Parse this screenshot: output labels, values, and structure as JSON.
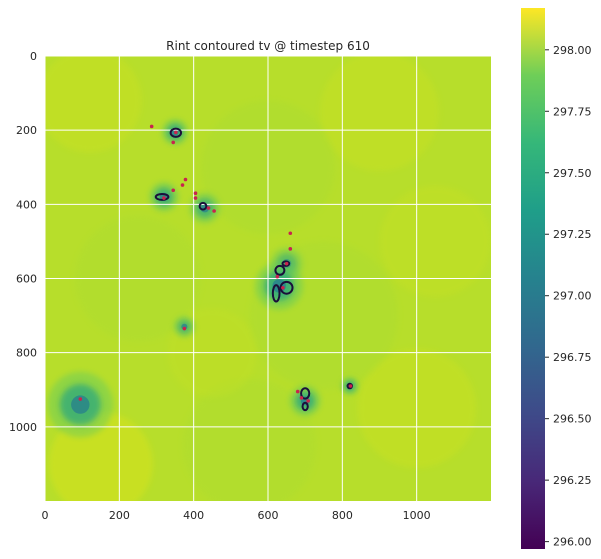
{
  "chart_data": {
    "type": "heatmap",
    "title": "Rint contoured tv @ timestep 610",
    "xlabel": "",
    "ylabel": "",
    "xlim": [
      0,
      1200
    ],
    "ylim": [
      1200,
      0
    ],
    "x_ticks": [
      0,
      200,
      400,
      600,
      800,
      1000
    ],
    "y_ticks": [
      0,
      200,
      400,
      600,
      800,
      1000
    ],
    "grid": true,
    "colormap": "viridis",
    "colorbar": {
      "range": [
        295.97,
        298.17
      ],
      "ticks": [
        "296.00",
        "296.25",
        "296.50",
        "296.75",
        "297.00",
        "297.25",
        "297.50",
        "297.75",
        "298.00"
      ]
    },
    "cold_spots": [
      {
        "x": 350,
        "y": 205,
        "r": 22,
        "depth": 0.8
      },
      {
        "x": 320,
        "y": 380,
        "r": 25,
        "depth": 0.75
      },
      {
        "x": 430,
        "y": 410,
        "r": 26,
        "depth": 0.7
      },
      {
        "x": 650,
        "y": 560,
        "r": 28,
        "depth": 0.55
      },
      {
        "x": 630,
        "y": 620,
        "r": 40,
        "depth": 0.8
      },
      {
        "x": 375,
        "y": 730,
        "r": 18,
        "depth": 0.7
      },
      {
        "x": 95,
        "y": 940,
        "r": 55,
        "depth": 0.75
      },
      {
        "x": 700,
        "y": 930,
        "r": 26,
        "depth": 0.8
      },
      {
        "x": 820,
        "y": 890,
        "r": 14,
        "depth": 0.9
      }
    ],
    "contours": [
      {
        "x": 352,
        "y": 207,
        "rx": 14,
        "ry": 11
      },
      {
        "x": 315,
        "y": 380,
        "rx": 17,
        "ry": 8
      },
      {
        "x": 425,
        "y": 405,
        "rx": 9,
        "ry": 9
      },
      {
        "x": 648,
        "y": 560,
        "rx": 9,
        "ry": 6
      },
      {
        "x": 632,
        "y": 578,
        "rx": 12,
        "ry": 12
      },
      {
        "x": 650,
        "y": 625,
        "rx": 16,
        "ry": 16
      },
      {
        "x": 622,
        "y": 640,
        "rx": 9,
        "ry": 22
      },
      {
        "x": 700,
        "y": 910,
        "rx": 11,
        "ry": 14
      },
      {
        "x": 700,
        "y": 945,
        "rx": 7,
        "ry": 10
      },
      {
        "x": 820,
        "y": 890,
        "rx": 6,
        "ry": 6
      }
    ],
    "dots": [
      {
        "x": 287,
        "y": 190
      },
      {
        "x": 352,
        "y": 206
      },
      {
        "x": 345,
        "y": 233
      },
      {
        "x": 378,
        "y": 333
      },
      {
        "x": 370,
        "y": 348
      },
      {
        "x": 345,
        "y": 362
      },
      {
        "x": 405,
        "y": 370
      },
      {
        "x": 405,
        "y": 383
      },
      {
        "x": 440,
        "y": 410
      },
      {
        "x": 455,
        "y": 418
      },
      {
        "x": 320,
        "y": 383
      },
      {
        "x": 660,
        "y": 478
      },
      {
        "x": 660,
        "y": 520
      },
      {
        "x": 650,
        "y": 560
      },
      {
        "x": 625,
        "y": 595
      },
      {
        "x": 640,
        "y": 625
      },
      {
        "x": 375,
        "y": 735
      },
      {
        "x": 95,
        "y": 925
      },
      {
        "x": 680,
        "y": 905
      },
      {
        "x": 690,
        "y": 922
      },
      {
        "x": 708,
        "y": 930
      },
      {
        "x": 822,
        "y": 890
      }
    ]
  }
}
